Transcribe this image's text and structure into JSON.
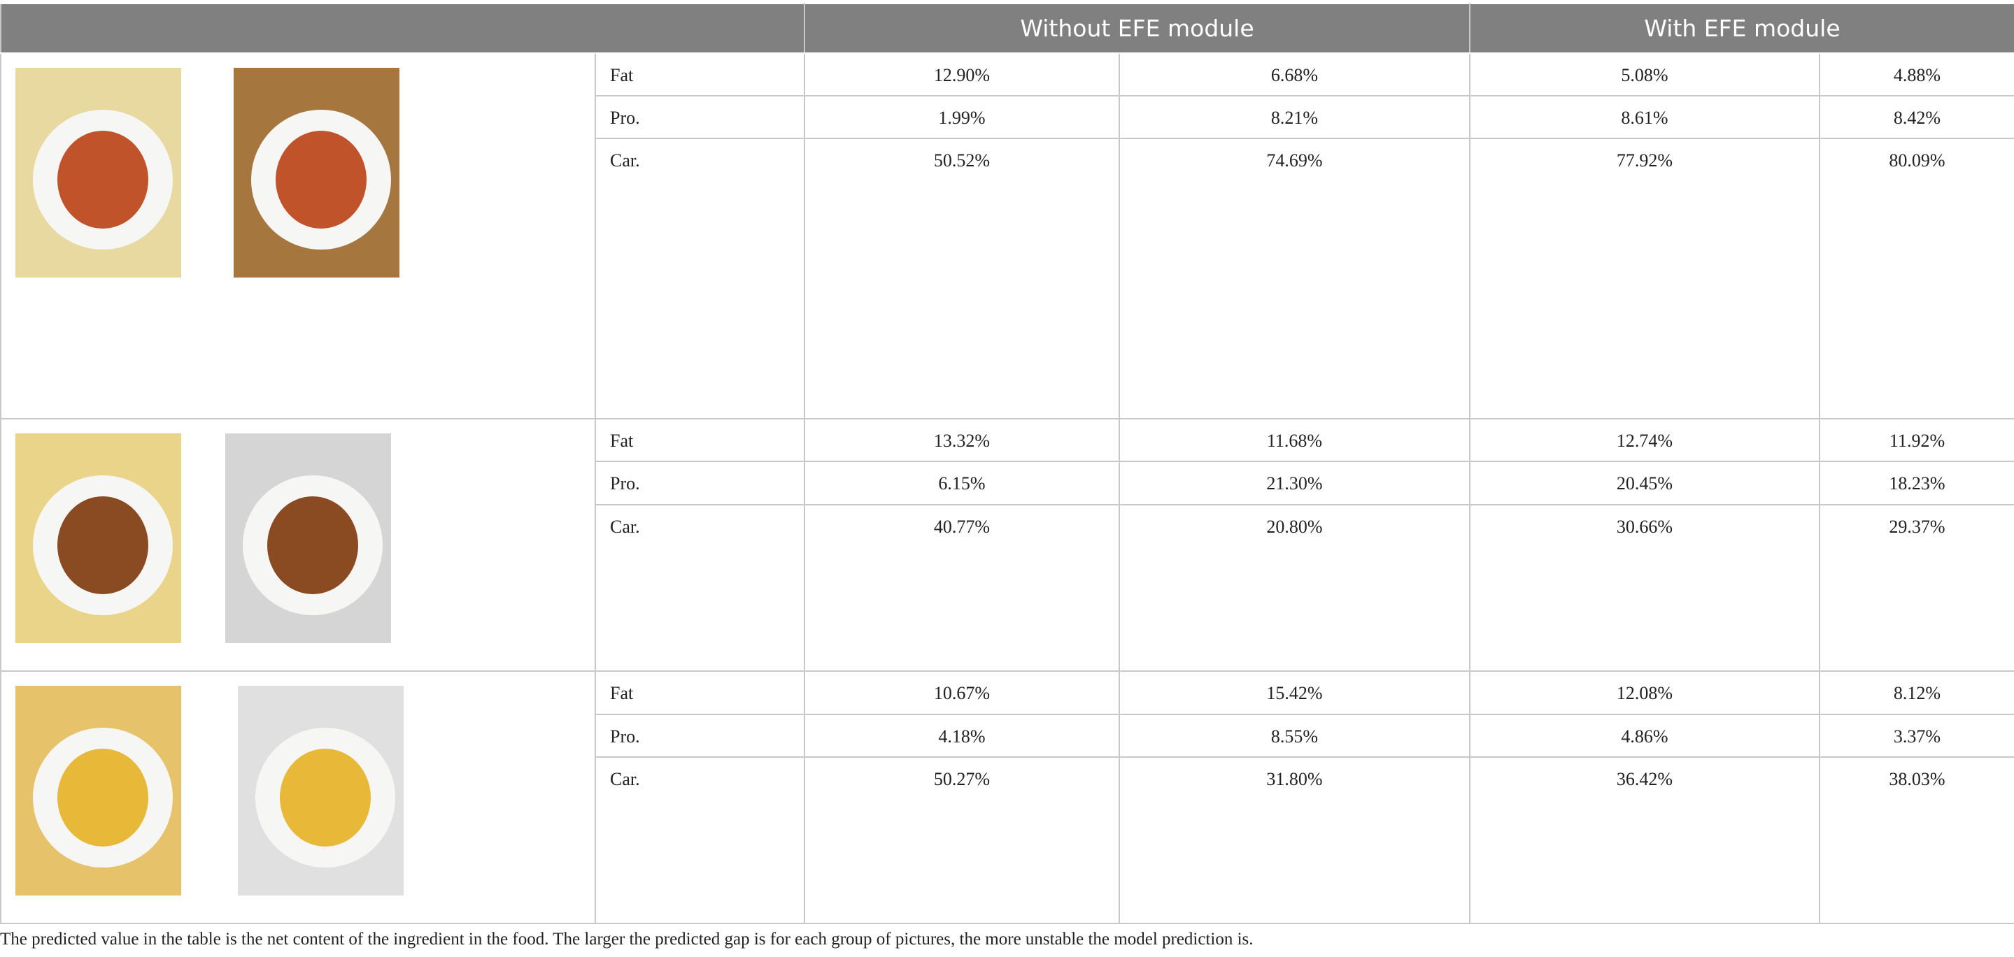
{
  "table": {
    "header": [
      "Without EFE module",
      "With EFE module"
    ],
    "groups": [
      {
        "rows": [
          {
            "label": "Fat",
            "values": [
              "12.90%",
              "6.68%",
              "5.08%",
              "4.88%"
            ]
          },
          {
            "label": "Pro.",
            "values": [
              "1.99%",
              "8.21%",
              "8.61%",
              "8.42%"
            ]
          },
          {
            "label": "Car.",
            "values": [
              "50.52%",
              "74.69%",
              "77.92%",
              "80.09%"
            ]
          }
        ]
      },
      {
        "rows": [
          {
            "label": "Fat",
            "values": [
              "13.32%",
              "11.68%",
              "12.74%",
              "11.92%"
            ]
          },
          {
            "label": "Pro.",
            "values": [
              "6.15%",
              "21.30%",
              "20.45%",
              "18.23%"
            ]
          },
          {
            "label": "Car.",
            "values": [
              "40.77%",
              "20.80%",
              "30.66%",
              "29.37%"
            ]
          }
        ]
      },
      {
        "rows": [
          {
            "label": "Fat",
            "values": [
              "10.67%",
              "15.42%",
              "12.08%",
              "8.12%"
            ]
          },
          {
            "label": "Pro.",
            "values": [
              "4.18%",
              "8.55%",
              "4.86%",
              "3.37%"
            ]
          },
          {
            "label": "Car.",
            "values": [
              "50.27%",
              "31.80%",
              "36.42%",
              "38.03%"
            ]
          }
        ]
      }
    ]
  },
  "caption": "The predicted value in the table is the net content of the ingredient in the food. The larger the predicted gap is for each group of pictures, the more unstable the model prediction is."
}
